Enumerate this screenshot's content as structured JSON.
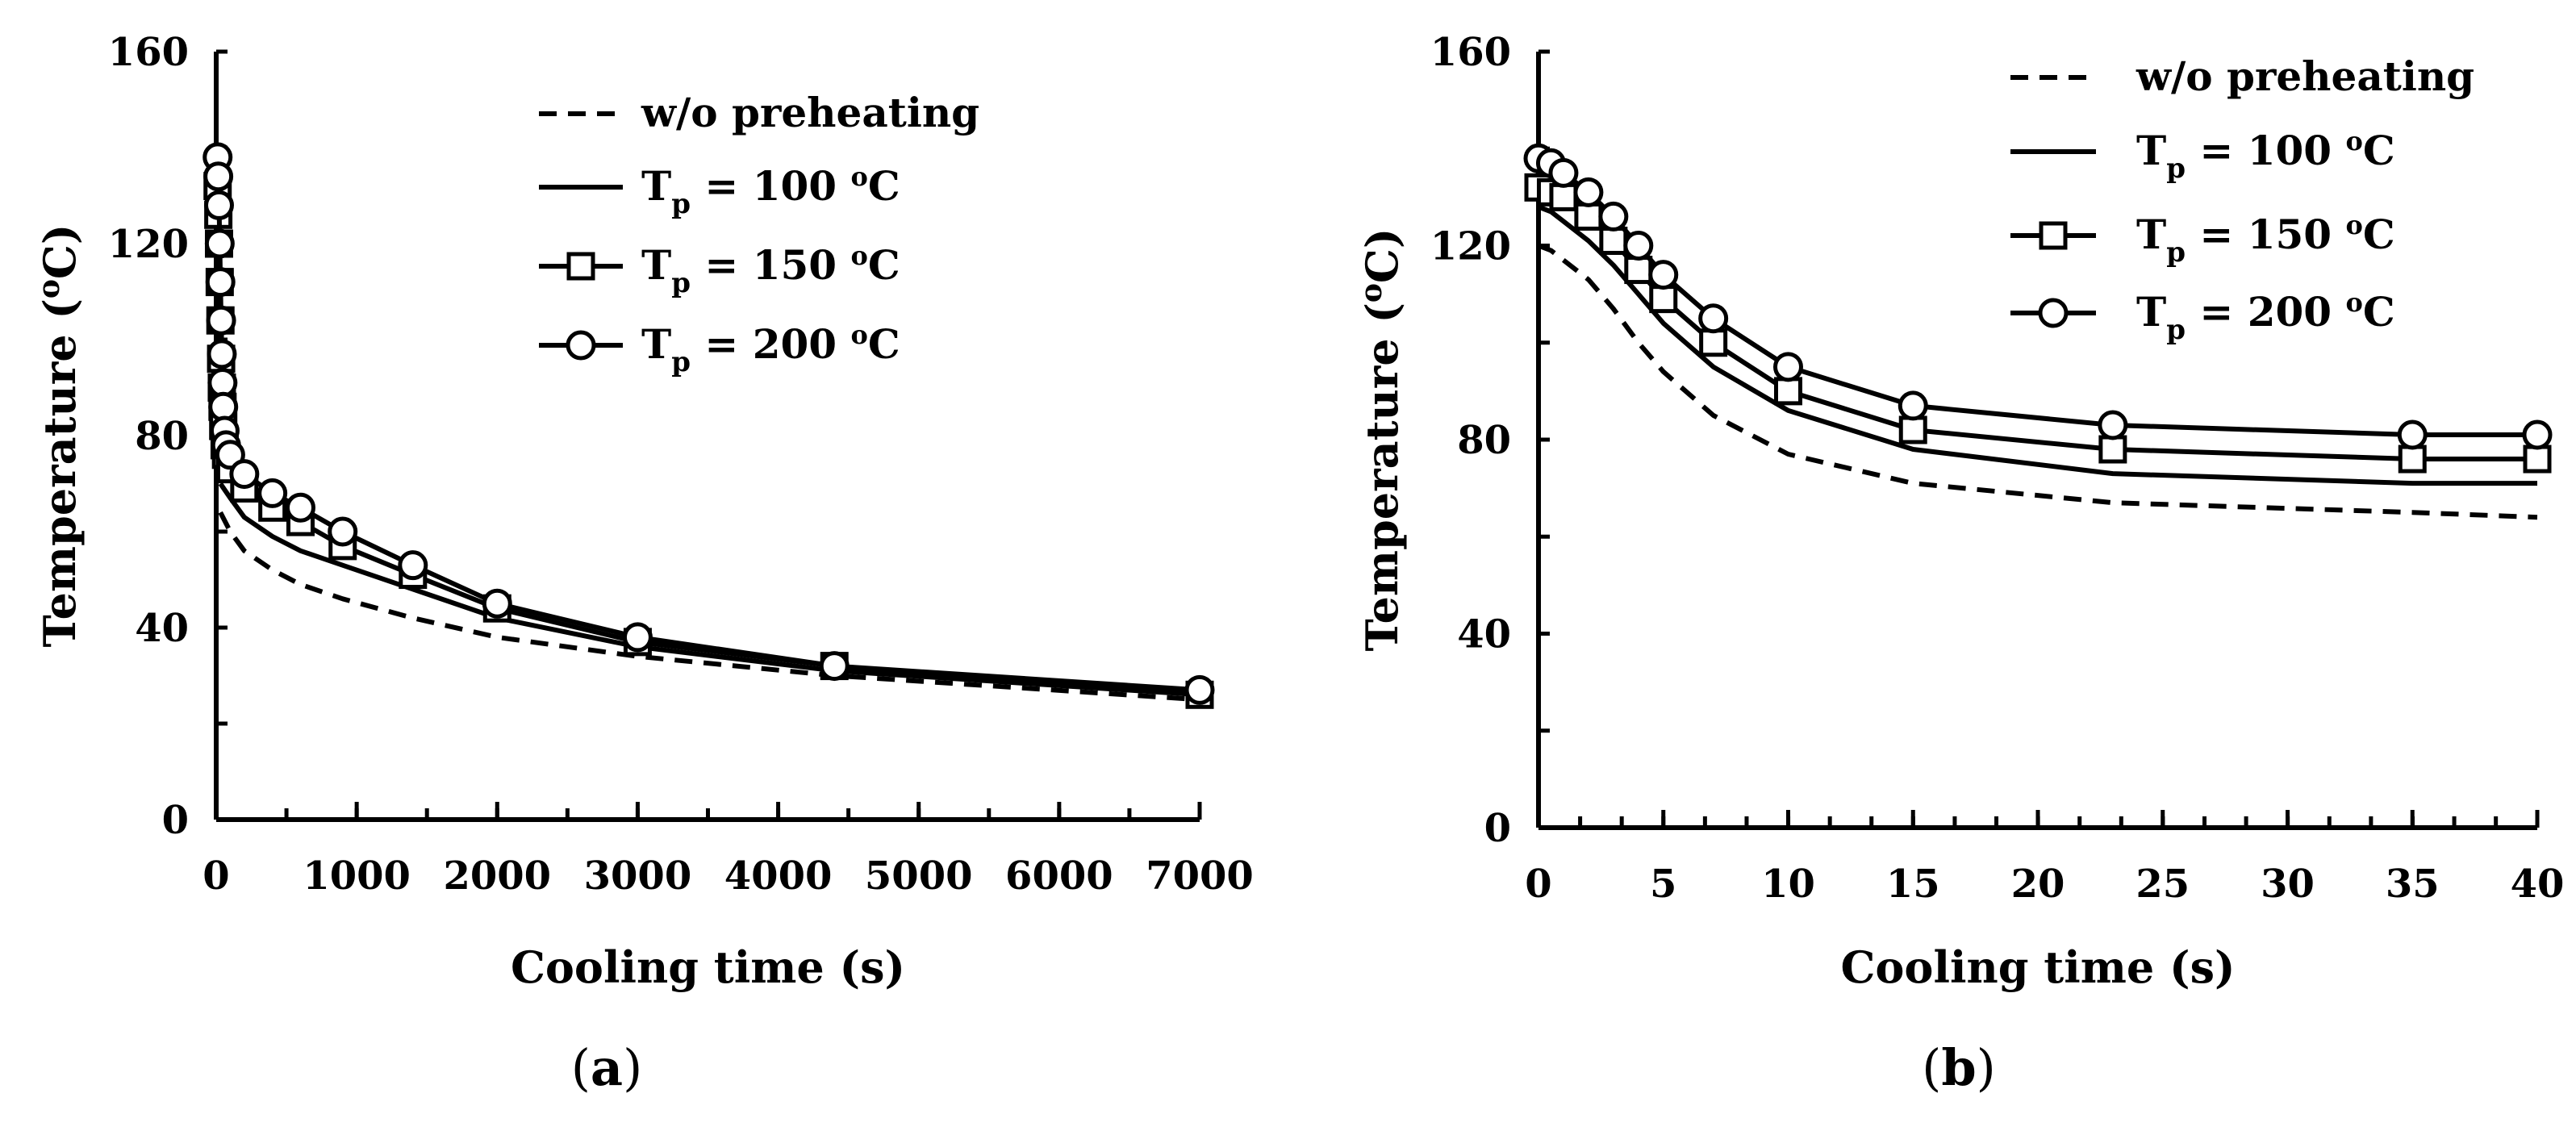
{
  "chart_data": [
    {
      "type": "line",
      "panel_label": "a",
      "title": "",
      "xlabel": "Cooling time (s)",
      "ylabel": "Temperature (oC)",
      "ylabel_main": "Temperature (",
      "ylabel_sup": "o",
      "ylabel_end": "C)",
      "xlim": [
        0,
        7000
      ],
      "ylim": [
        0,
        160
      ],
      "xticks": [
        0,
        1000,
        2000,
        3000,
        4000,
        5000,
        6000,
        7000
      ],
      "xtick_labels": [
        "0",
        "1000",
        "2000",
        "3000",
        "4000",
        "5000",
        "6000",
        "7000"
      ],
      "yticks": [
        0,
        40,
        80,
        120,
        160
      ],
      "ytick_labels": [
        "0",
        "40",
        "80",
        "120",
        "160"
      ],
      "grid": false,
      "legend_position": "top-right",
      "series": [
        {
          "name": "w/o preheating",
          "style": "dashed",
          "marker": "none",
          "x": [
            30,
            100,
            200,
            400,
            600,
            900,
            1400,
            2000,
            3000,
            4400,
            7000
          ],
          "y": [
            64,
            60,
            56,
            52,
            49,
            46,
            42,
            38,
            34,
            30,
            25
          ],
          "legend": {
            "main": "w/o preheating"
          }
        },
        {
          "name": "Tp = 100 oC",
          "style": "solid",
          "marker": "none",
          "x": [
            30,
            100,
            200,
            400,
            600,
            900,
            1400,
            2000,
            3000,
            4400,
            7000
          ],
          "y": [
            70,
            67,
            63,
            59,
            56,
            53,
            48,
            42,
            36,
            31,
            26
          ],
          "legend": {
            "pre": "T",
            "sub": "p",
            "mid": " = 100 ",
            "sup": "o",
            "post": "C"
          }
        },
        {
          "name": "Tp = 150 oC",
          "style": "solid",
          "marker": "square",
          "x": [
            10,
            15,
            20,
            25,
            30,
            35,
            40,
            45,
            50,
            60,
            70,
            100,
            200,
            400,
            600,
            900,
            1400,
            2000,
            3000,
            4400,
            7000
          ],
          "y": [
            132,
            126,
            120,
            112,
            104,
            96,
            90,
            86,
            82,
            78,
            76,
            73,
            69,
            65,
            62,
            57,
            51,
            44,
            37,
            32,
            26
          ],
          "legend": {
            "pre": "T",
            "sub": "p",
            "mid": " = 150 ",
            "sup": "o",
            "post": "C"
          }
        },
        {
          "name": "Tp = 200 oC",
          "style": "solid",
          "marker": "circle",
          "x": [
            10,
            15,
            20,
            25,
            30,
            35,
            40,
            45,
            50,
            60,
            70,
            100,
            200,
            400,
            600,
            900,
            1400,
            2000,
            3000,
            4400,
            7000
          ],
          "y": [
            138,
            134,
            128,
            120,
            112,
            104,
            97,
            91,
            86,
            81,
            78,
            76,
            72,
            68,
            65,
            60,
            53,
            45,
            38,
            32,
            27
          ],
          "legend": {
            "pre": "T",
            "sub": "p",
            "mid": " = 200 ",
            "sup": "o",
            "post": "C"
          }
        }
      ]
    },
    {
      "type": "line",
      "panel_label": "b",
      "title": "",
      "xlabel": "Cooling time (s)",
      "ylabel": "Temperature (oC)",
      "ylabel_main": "Temperature (",
      "ylabel_sup": "o",
      "ylabel_end": "C)",
      "xlim": [
        0,
        40
      ],
      "ylim": [
        0,
        160
      ],
      "xticks": [
        0,
        5,
        10,
        15,
        20,
        25,
        30,
        35,
        40
      ],
      "xtick_labels": [
        "0",
        "5",
        "10",
        "15",
        "20",
        "25",
        "30",
        "35",
        "40"
      ],
      "yticks": [
        0,
        40,
        80,
        120,
        160
      ],
      "ytick_labels": [
        "0",
        "40",
        "80",
        "120",
        "160"
      ],
      "grid": false,
      "legend_position": "top-right",
      "series": [
        {
          "name": "w/o preheating",
          "style": "dashed",
          "marker": "none",
          "x": [
            0,
            0.5,
            1,
            2,
            3,
            4,
            5,
            7,
            10,
            15,
            23,
            35,
            40
          ],
          "y": [
            120,
            119,
            117,
            113,
            107,
            100,
            94,
            85,
            77,
            71,
            67,
            65,
            64
          ],
          "legend": {
            "main": "w/o preheating"
          }
        },
        {
          "name": "Tp = 100 oC",
          "style": "solid",
          "marker": "none",
          "x": [
            0,
            0.5,
            1,
            2,
            3,
            4,
            5,
            7,
            10,
            15,
            23,
            35,
            40
          ],
          "y": [
            128,
            127,
            125,
            121,
            116,
            110,
            104,
            95,
            86,
            78,
            73,
            71,
            71
          ],
          "legend": {
            "pre": "T",
            "sub": "p",
            "mid": " = 100 ",
            "sup": "o",
            "post": "C"
          }
        },
        {
          "name": "Tp = 150 oC",
          "style": "solid",
          "marker": "square",
          "x": [
            0,
            0.5,
            1,
            2,
            3,
            4,
            5,
            7,
            10,
            15,
            23,
            35,
            40
          ],
          "y": [
            132,
            131,
            130,
            126,
            121,
            115,
            109,
            100,
            90,
            82,
            78,
            76,
            76
          ],
          "legend": {
            "pre": "T",
            "sub": "p",
            "mid": " = 150 ",
            "sup": "o",
            "post": "C"
          }
        },
        {
          "name": "Tp = 200 oC",
          "style": "solid",
          "marker": "circle",
          "x": [
            0,
            0.5,
            1,
            2,
            3,
            4,
            5,
            7,
            10,
            15,
            23,
            35,
            40
          ],
          "y": [
            138,
            137,
            135,
            131,
            126,
            120,
            114,
            105,
            95,
            87,
            83,
            81,
            81
          ],
          "legend": {
            "pre": "T",
            "sub": "p",
            "mid": " = 200 ",
            "sup": "o",
            "post": "C"
          }
        }
      ]
    }
  ]
}
